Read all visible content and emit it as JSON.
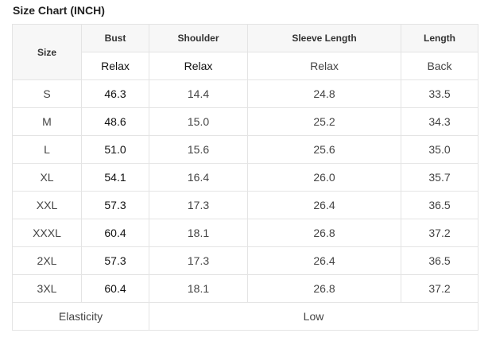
{
  "title": "Size Chart (INCH)",
  "headers": {
    "size": "Size",
    "columns": [
      "Bust",
      "Shoulder",
      "Sleeve Length",
      "Length"
    ],
    "subheaders": [
      "Relax",
      "Relax",
      "Relax",
      "Back"
    ]
  },
  "rows": [
    {
      "size": "S",
      "bust": "46.3",
      "shoulder": "14.4",
      "sleeve": "24.8",
      "length": "33.5"
    },
    {
      "size": "M",
      "bust": "48.6",
      "shoulder": "15.0",
      "sleeve": "25.2",
      "length": "34.3"
    },
    {
      "size": "L",
      "bust": "51.0",
      "shoulder": "15.6",
      "sleeve": "25.6",
      "length": "35.0"
    },
    {
      "size": "XL",
      "bust": "54.1",
      "shoulder": "16.4",
      "sleeve": "26.0",
      "length": "35.7"
    },
    {
      "size": "XXL",
      "bust": "57.3",
      "shoulder": "17.3",
      "sleeve": "26.4",
      "length": "36.5"
    },
    {
      "size": "XXXL",
      "bust": "60.4",
      "shoulder": "18.1",
      "sleeve": "26.8",
      "length": "37.2"
    },
    {
      "size": "2XL",
      "bust": "57.3",
      "shoulder": "17.3",
      "sleeve": "26.4",
      "length": "36.5"
    },
    {
      "size": "3XL",
      "bust": "60.4",
      "shoulder": "18.1",
      "sleeve": "26.8",
      "length": "37.2"
    }
  ],
  "footer": {
    "label": "Elasticity",
    "value": "Low"
  }
}
